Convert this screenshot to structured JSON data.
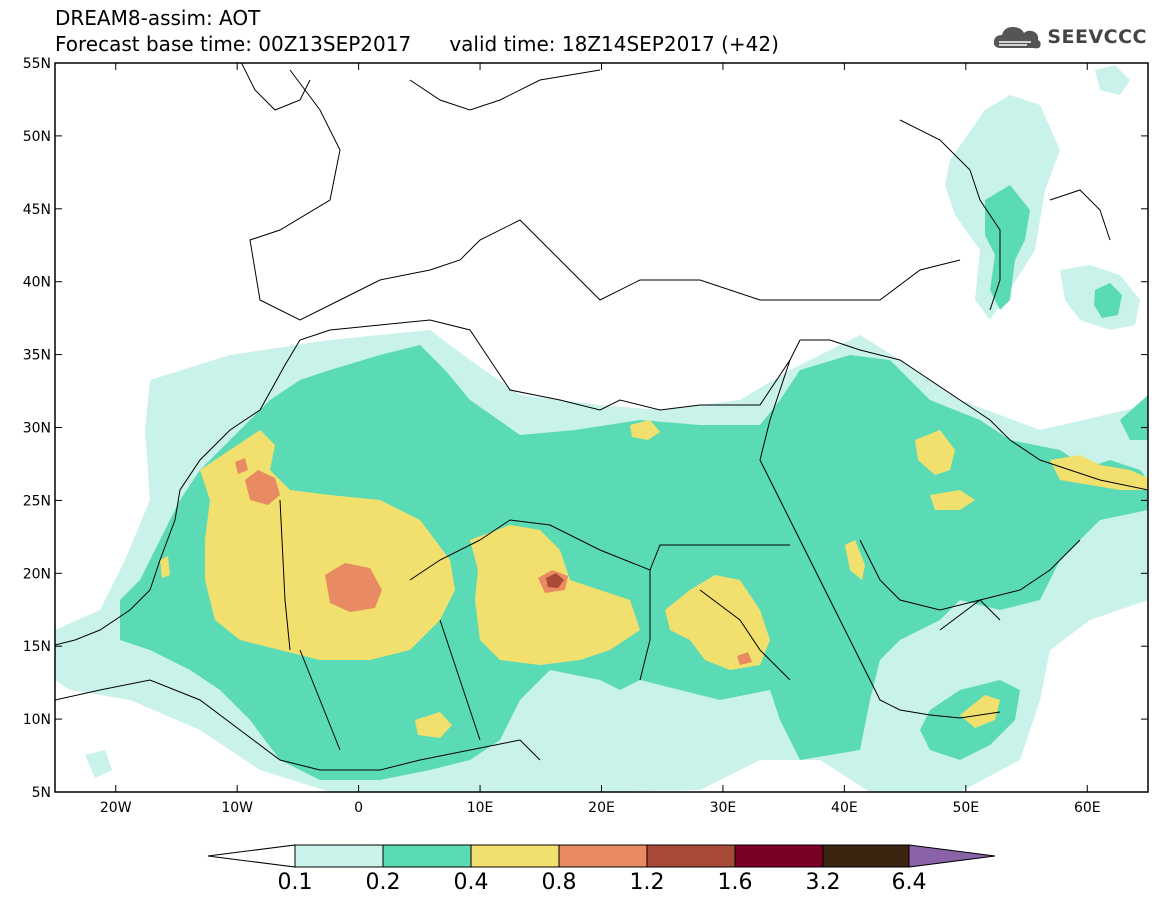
{
  "header": {
    "line1": "DREAM8-assim: AOT",
    "line2": "Forecast base time: 00Z13SEP2017      valid time: 18Z14SEP2017 (+42)"
  },
  "logo": {
    "text": "SEEVCCC",
    "icon": "cloud-logo-icon"
  },
  "map": {
    "lon_range": [
      -25,
      65
    ],
    "lat_range": [
      5,
      55
    ],
    "lat_ticks": [
      {
        "value": 55,
        "label": "55N"
      },
      {
        "value": 50,
        "label": "50N"
      },
      {
        "value": 45,
        "label": "45N"
      },
      {
        "value": 40,
        "label": "40N"
      },
      {
        "value": 35,
        "label": "35N"
      },
      {
        "value": 30,
        "label": "30N"
      },
      {
        "value": 25,
        "label": "25N"
      },
      {
        "value": 20,
        "label": "20N"
      },
      {
        "value": 15,
        "label": "15N"
      },
      {
        "value": 10,
        "label": "10N"
      },
      {
        "value": 5,
        "label": "5N"
      }
    ],
    "lon_ticks": [
      {
        "value": -20,
        "label": "20W"
      },
      {
        "value": -10,
        "label": "10W"
      },
      {
        "value": 0,
        "label": "0"
      },
      {
        "value": 10,
        "label": "10E"
      },
      {
        "value": 20,
        "label": "20E"
      },
      {
        "value": 30,
        "label": "30E"
      },
      {
        "value": 40,
        "label": "40E"
      },
      {
        "value": 50,
        "label": "50E"
      },
      {
        "value": 60,
        "label": "60E"
      }
    ]
  },
  "colorbar": {
    "labels": [
      "0.1",
      "0.2",
      "0.4",
      "0.8",
      "1.2",
      "1.6",
      "3.2",
      "6.4"
    ],
    "colors": [
      "#ffffff",
      "#c9f2ea",
      "#5bdbb5",
      "#f2e06e",
      "#e88a62",
      "#a84a38",
      "#7a0025",
      "#3a2410",
      "#8a62a8"
    ]
  },
  "colors": {
    "l1": "#c9f2ea",
    "l2": "#5bdbb5",
    "l3": "#f2e06e",
    "l4": "#e88a62",
    "l5": "#a84a38"
  }
}
